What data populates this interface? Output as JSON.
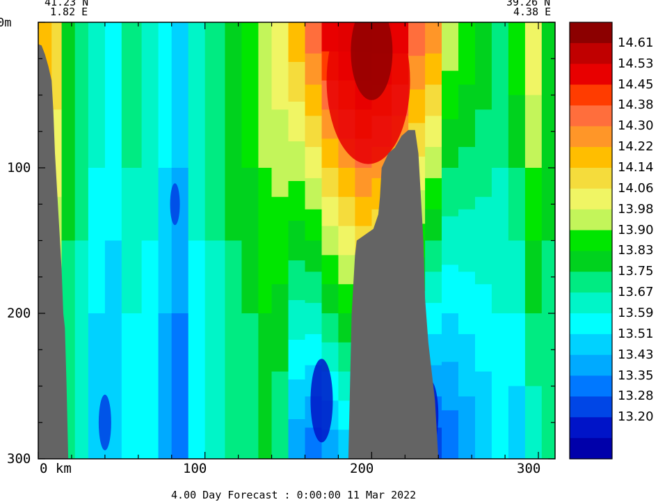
{
  "chart_data": {
    "type": "heatmap",
    "title": "",
    "corner_left": {
      "lat": "41.23 N",
      "lon": "1.82 E"
    },
    "corner_right": {
      "lat": "39.26 N",
      "lon": "4.38 E"
    },
    "xlabel": "km",
    "ylabel": "",
    "xlim": [
      0,
      310
    ],
    "ylim": [
      300,
      0
    ],
    "x_ticks": [
      {
        "value": 0,
        "label": "0 km"
      },
      {
        "value": 100,
        "label": "100"
      },
      {
        "value": 200,
        "label": "200"
      },
      {
        "value": 300,
        "label": "300"
      }
    ],
    "y_ticks": [
      {
        "value": 0,
        "label": "0m"
      },
      {
        "value": 100,
        "label": "100"
      },
      {
        "value": 200,
        "label": "200"
      },
      {
        "value": 300,
        "label": "300"
      }
    ],
    "colorbar": {
      "labels": [
        "14.61",
        "14.53",
        "14.45",
        "14.38",
        "14.30",
        "14.22",
        "14.14",
        "14.06",
        "13.98",
        "13.90",
        "13.83",
        "13.75",
        "13.67",
        "13.59",
        "13.51",
        "13.43",
        "13.35",
        "13.28",
        "13.20"
      ],
      "colors": [
        "#8c0000",
        "#c00000",
        "#e80000",
        "#ff3c00",
        "#ff6e3c",
        "#ff9628",
        "#ffbe00",
        "#f5dc3c",
        "#f0f564",
        "#c3f55a",
        "#00e600",
        "#00d21e",
        "#00eb82",
        "#00f5c8",
        "#00ffff",
        "#00d2ff",
        "#00aaff",
        "#0078ff",
        "#0046e6",
        "#0014c8",
        "#0000aa"
      ]
    },
    "topography_color": "#646464",
    "footer": "4.00 Day Forecast :  0:00:00  11 Mar 2022"
  }
}
